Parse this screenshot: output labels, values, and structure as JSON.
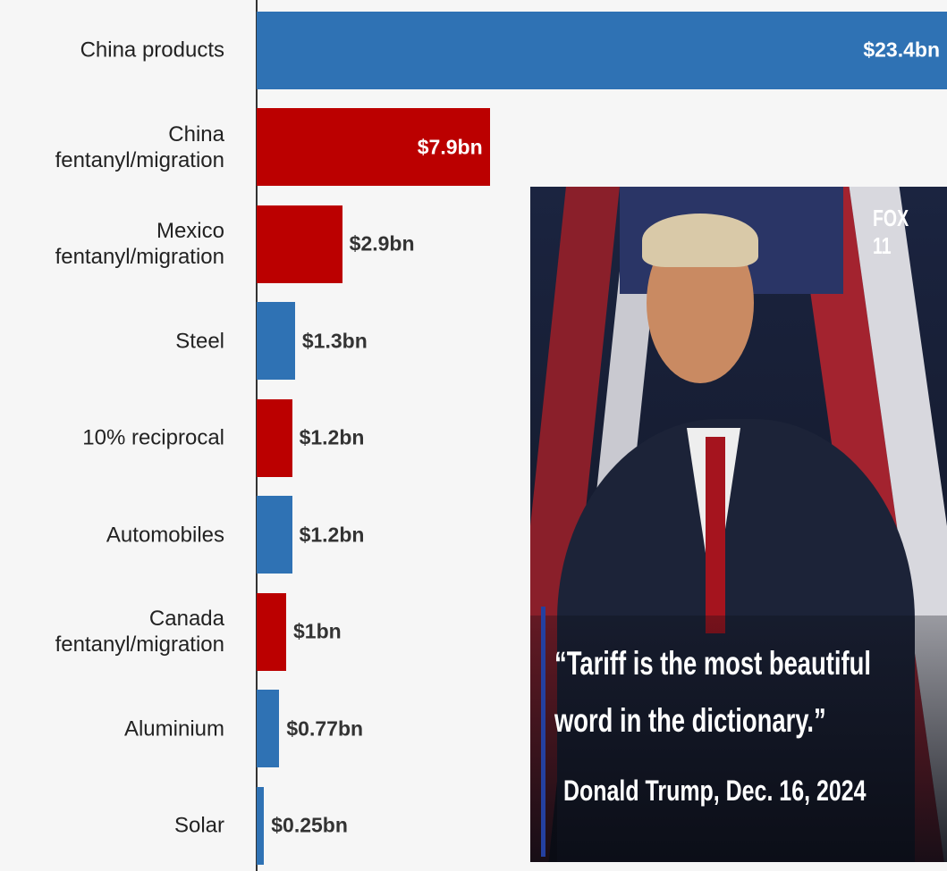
{
  "chart_data": {
    "type": "hbar",
    "categories": [
      "China products",
      "China fentanyl/migration",
      "Mexico fentanyl/migration",
      "Steel",
      "10% reciprocal",
      "Automobiles",
      "Canada fentanyl/migration",
      "Aluminium",
      "Solar"
    ],
    "values": [
      23.4,
      7.9,
      2.9,
      1.3,
      1.2,
      1.2,
      1,
      0.77,
      0.25
    ],
    "value_labels": [
      "$23.4bn",
      "$7.9bn",
      "$2.9bn",
      "$1.3bn",
      "$1.2bn",
      "$1.2bn",
      "$1bn",
      "$0.77bn",
      "$0.25bn"
    ],
    "colors": [
      "#2f72b4",
      "#bb0000",
      "#bb0000",
      "#2f72b4",
      "#bb0000",
      "#2f72b4",
      "#bb0000",
      "#2f72b4",
      "#2f72b4"
    ],
    "xlim": [
      0,
      23.4
    ]
  },
  "photo": {
    "logo": "FOX 11",
    "quote": "“Tariff is the most beautiful word in the dictionary.”",
    "attribution": "Donald Trump, Dec. 16, 2024"
  }
}
